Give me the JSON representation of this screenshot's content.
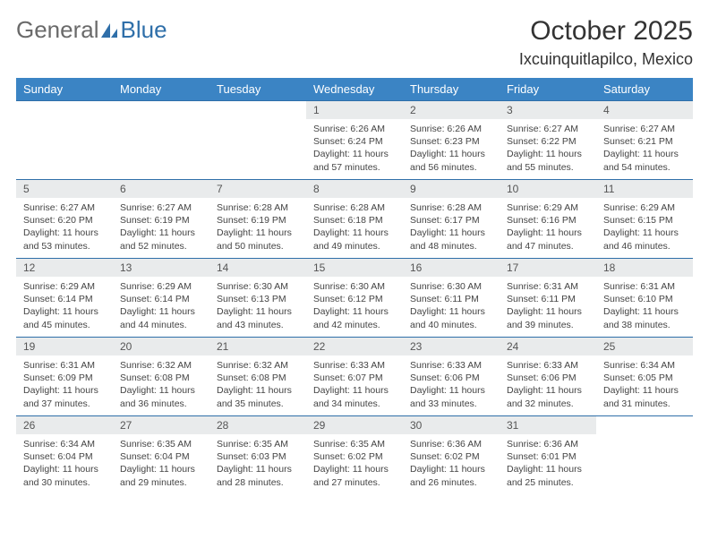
{
  "brand": {
    "word1": "General",
    "word2": "Blue"
  },
  "title": "October 2025",
  "location": "Ixcuinquitlapilco, Mexico",
  "colors": {
    "header_bg": "#3b84c4",
    "header_text": "#ffffff",
    "daynum_bg": "#e9ebec",
    "border": "#2f6fa9",
    "text": "#333333"
  },
  "day_headers": [
    "Sunday",
    "Monday",
    "Tuesday",
    "Wednesday",
    "Thursday",
    "Friday",
    "Saturday"
  ],
  "weeks": [
    [
      {
        "n": "",
        "lines": []
      },
      {
        "n": "",
        "lines": []
      },
      {
        "n": "",
        "lines": []
      },
      {
        "n": "1",
        "lines": [
          "Sunrise: 6:26 AM",
          "Sunset: 6:24 PM",
          "Daylight: 11 hours and 57 minutes."
        ]
      },
      {
        "n": "2",
        "lines": [
          "Sunrise: 6:26 AM",
          "Sunset: 6:23 PM",
          "Daylight: 11 hours and 56 minutes."
        ]
      },
      {
        "n": "3",
        "lines": [
          "Sunrise: 6:27 AM",
          "Sunset: 6:22 PM",
          "Daylight: 11 hours and 55 minutes."
        ]
      },
      {
        "n": "4",
        "lines": [
          "Sunrise: 6:27 AM",
          "Sunset: 6:21 PM",
          "Daylight: 11 hours and 54 minutes."
        ]
      }
    ],
    [
      {
        "n": "5",
        "lines": [
          "Sunrise: 6:27 AM",
          "Sunset: 6:20 PM",
          "Daylight: 11 hours and 53 minutes."
        ]
      },
      {
        "n": "6",
        "lines": [
          "Sunrise: 6:27 AM",
          "Sunset: 6:19 PM",
          "Daylight: 11 hours and 52 minutes."
        ]
      },
      {
        "n": "7",
        "lines": [
          "Sunrise: 6:28 AM",
          "Sunset: 6:19 PM",
          "Daylight: 11 hours and 50 minutes."
        ]
      },
      {
        "n": "8",
        "lines": [
          "Sunrise: 6:28 AM",
          "Sunset: 6:18 PM",
          "Daylight: 11 hours and 49 minutes."
        ]
      },
      {
        "n": "9",
        "lines": [
          "Sunrise: 6:28 AM",
          "Sunset: 6:17 PM",
          "Daylight: 11 hours and 48 minutes."
        ]
      },
      {
        "n": "10",
        "lines": [
          "Sunrise: 6:29 AM",
          "Sunset: 6:16 PM",
          "Daylight: 11 hours and 47 minutes."
        ]
      },
      {
        "n": "11",
        "lines": [
          "Sunrise: 6:29 AM",
          "Sunset: 6:15 PM",
          "Daylight: 11 hours and 46 minutes."
        ]
      }
    ],
    [
      {
        "n": "12",
        "lines": [
          "Sunrise: 6:29 AM",
          "Sunset: 6:14 PM",
          "Daylight: 11 hours and 45 minutes."
        ]
      },
      {
        "n": "13",
        "lines": [
          "Sunrise: 6:29 AM",
          "Sunset: 6:14 PM",
          "Daylight: 11 hours and 44 minutes."
        ]
      },
      {
        "n": "14",
        "lines": [
          "Sunrise: 6:30 AM",
          "Sunset: 6:13 PM",
          "Daylight: 11 hours and 43 minutes."
        ]
      },
      {
        "n": "15",
        "lines": [
          "Sunrise: 6:30 AM",
          "Sunset: 6:12 PM",
          "Daylight: 11 hours and 42 minutes."
        ]
      },
      {
        "n": "16",
        "lines": [
          "Sunrise: 6:30 AM",
          "Sunset: 6:11 PM",
          "Daylight: 11 hours and 40 minutes."
        ]
      },
      {
        "n": "17",
        "lines": [
          "Sunrise: 6:31 AM",
          "Sunset: 6:11 PM",
          "Daylight: 11 hours and 39 minutes."
        ]
      },
      {
        "n": "18",
        "lines": [
          "Sunrise: 6:31 AM",
          "Sunset: 6:10 PM",
          "Daylight: 11 hours and 38 minutes."
        ]
      }
    ],
    [
      {
        "n": "19",
        "lines": [
          "Sunrise: 6:31 AM",
          "Sunset: 6:09 PM",
          "Daylight: 11 hours and 37 minutes."
        ]
      },
      {
        "n": "20",
        "lines": [
          "Sunrise: 6:32 AM",
          "Sunset: 6:08 PM",
          "Daylight: 11 hours and 36 minutes."
        ]
      },
      {
        "n": "21",
        "lines": [
          "Sunrise: 6:32 AM",
          "Sunset: 6:08 PM",
          "Daylight: 11 hours and 35 minutes."
        ]
      },
      {
        "n": "22",
        "lines": [
          "Sunrise: 6:33 AM",
          "Sunset: 6:07 PM",
          "Daylight: 11 hours and 34 minutes."
        ]
      },
      {
        "n": "23",
        "lines": [
          "Sunrise: 6:33 AM",
          "Sunset: 6:06 PM",
          "Daylight: 11 hours and 33 minutes."
        ]
      },
      {
        "n": "24",
        "lines": [
          "Sunrise: 6:33 AM",
          "Sunset: 6:06 PM",
          "Daylight: 11 hours and 32 minutes."
        ]
      },
      {
        "n": "25",
        "lines": [
          "Sunrise: 6:34 AM",
          "Sunset: 6:05 PM",
          "Daylight: 11 hours and 31 minutes."
        ]
      }
    ],
    [
      {
        "n": "26",
        "lines": [
          "Sunrise: 6:34 AM",
          "Sunset: 6:04 PM",
          "Daylight: 11 hours and 30 minutes."
        ]
      },
      {
        "n": "27",
        "lines": [
          "Sunrise: 6:35 AM",
          "Sunset: 6:04 PM",
          "Daylight: 11 hours and 29 minutes."
        ]
      },
      {
        "n": "28",
        "lines": [
          "Sunrise: 6:35 AM",
          "Sunset: 6:03 PM",
          "Daylight: 11 hours and 28 minutes."
        ]
      },
      {
        "n": "29",
        "lines": [
          "Sunrise: 6:35 AM",
          "Sunset: 6:02 PM",
          "Daylight: 11 hours and 27 minutes."
        ]
      },
      {
        "n": "30",
        "lines": [
          "Sunrise: 6:36 AM",
          "Sunset: 6:02 PM",
          "Daylight: 11 hours and 26 minutes."
        ]
      },
      {
        "n": "31",
        "lines": [
          "Sunrise: 6:36 AM",
          "Sunset: 6:01 PM",
          "Daylight: 11 hours and 25 minutes."
        ]
      },
      {
        "n": "",
        "lines": []
      }
    ]
  ]
}
